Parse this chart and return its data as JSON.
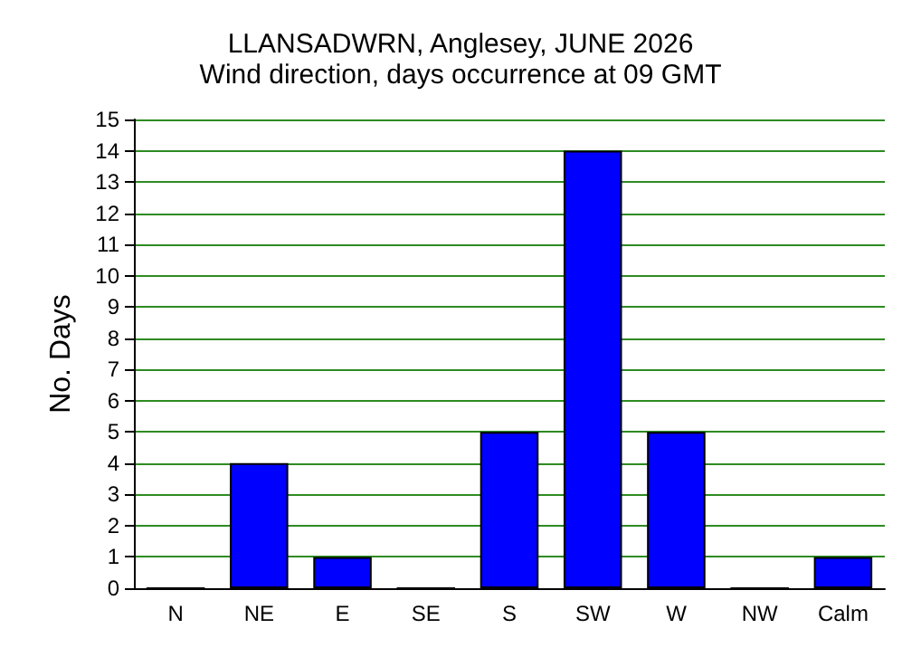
{
  "chart_data": {
    "type": "bar",
    "title": "LLANSADWRN, Anglesey, JUNE 2026",
    "subtitle": "Wind direction, days occurrence at 09 GMT",
    "ylabel": "No. Days",
    "categories": [
      "N",
      "NE",
      "E",
      "SE",
      "S",
      "SW",
      "W",
      "NW",
      "Calm"
    ],
    "values": [
      0,
      4,
      1,
      0,
      5,
      14,
      5,
      0,
      1
    ],
    "color": "#0000ff",
    "ylim": [
      0,
      15
    ],
    "yticks": [
      0,
      1,
      2,
      3,
      4,
      5,
      6,
      7,
      8,
      9,
      10,
      11,
      12,
      13,
      14,
      15
    ],
    "grid": "y"
  }
}
